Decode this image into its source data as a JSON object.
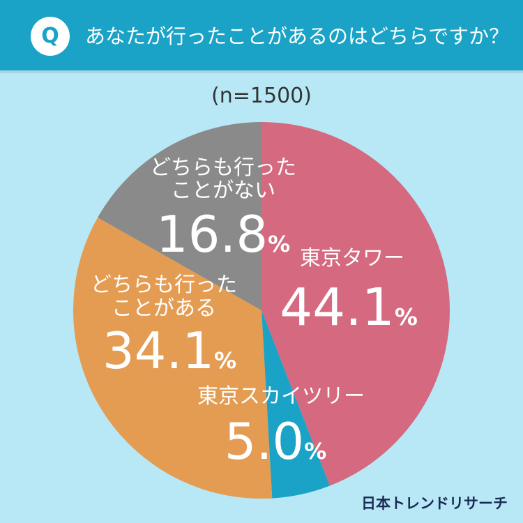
{
  "header": {
    "badge": "Q",
    "question": "あなたが行ったことがあるのはどちらですか？"
  },
  "sample_label": "(n=1500)",
  "brand": "日本トレンドリサーチ",
  "colors": {
    "header": "#1aa3c6",
    "background": "#b8e8f5",
    "tokyo_tower": "#d4697f",
    "skytree": "#1aa3c6",
    "both": "#e49c53",
    "neither": "#8a8a8a"
  },
  "chart_data": {
    "type": "pie",
    "start": "12 o'clock",
    "direction": "clockwise",
    "unit": "%",
    "slices": [
      {
        "label": "東京タワー",
        "value": 44.1,
        "display": "44.1",
        "color": "#d4697f"
      },
      {
        "label": "東京スカイツリー",
        "value": 5.0,
        "display": "5.0",
        "color": "#1aa3c6"
      },
      {
        "label": "どちらも行ったことがある",
        "label_lines": [
          "どちらも行った",
          "ことがある"
        ],
        "value": 34.1,
        "display": "34.1",
        "color": "#e49c53"
      },
      {
        "label": "どちらも行ったことがない",
        "label_lines": [
          "どちらも行った",
          "ことがない"
        ],
        "value": 16.8,
        "display": "16.8",
        "color": "#8a8a8a"
      }
    ]
  }
}
